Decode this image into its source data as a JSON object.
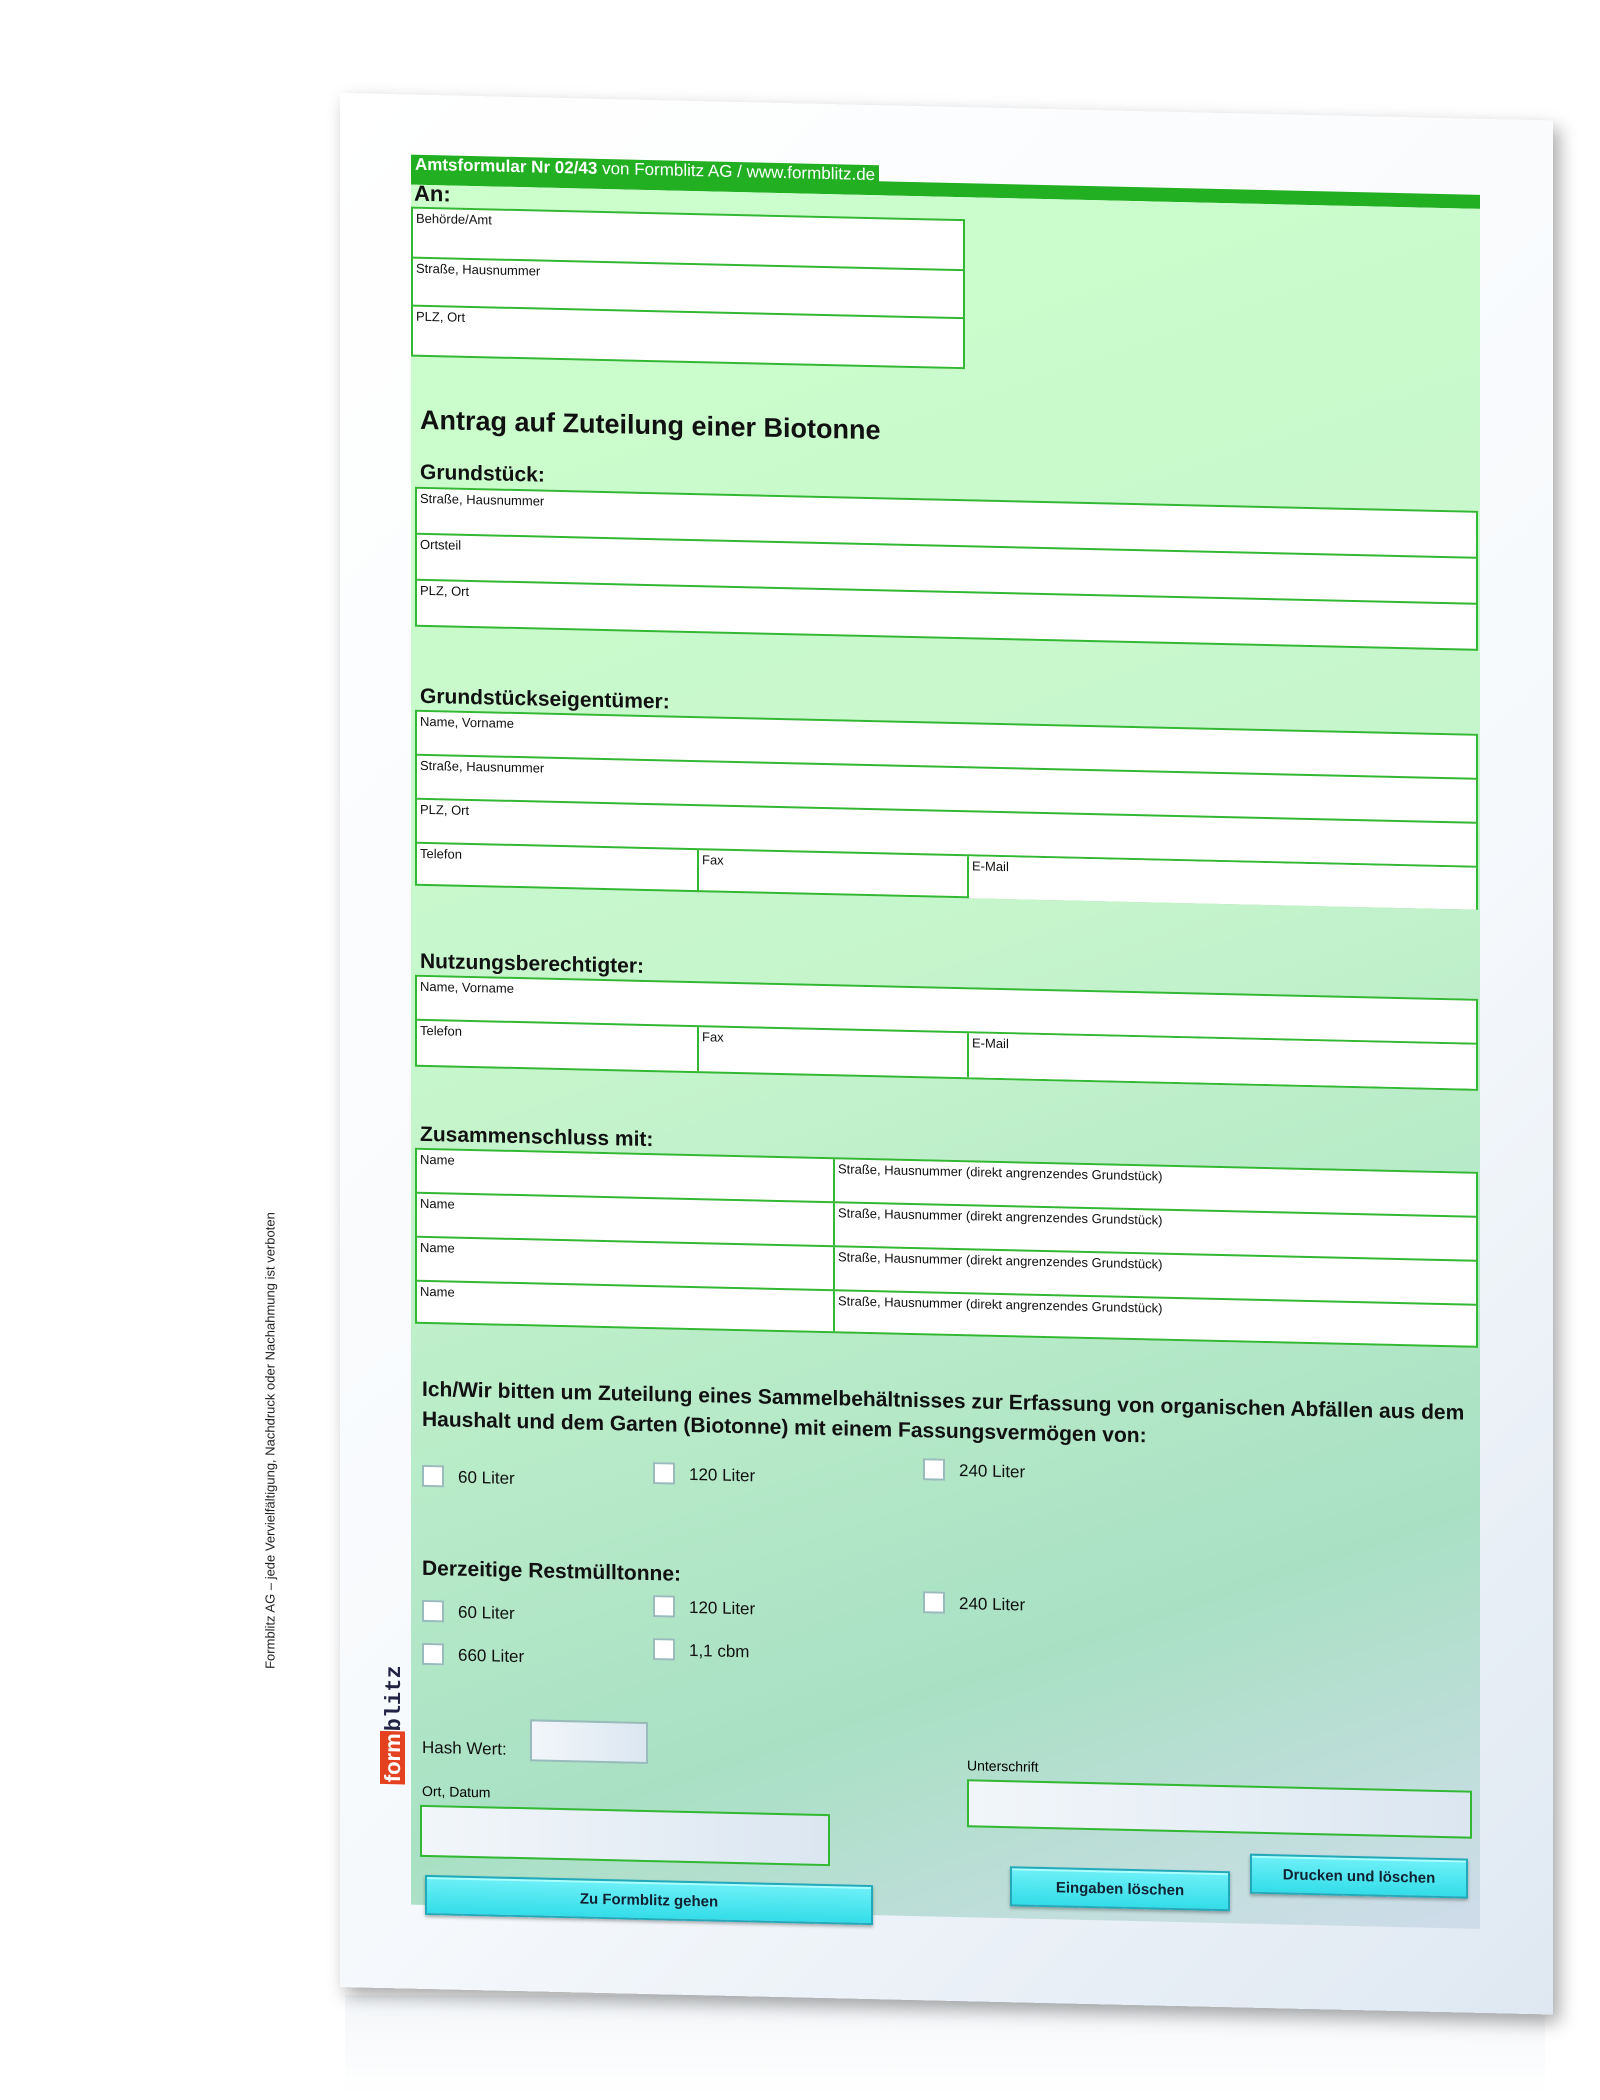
{
  "header": {
    "form_number": "Amtsformular Nr 02/43",
    "publisher": "von Formblitz AG / www.formblitz.de"
  },
  "an": {
    "heading": "An:",
    "fields": [
      "Behörde/Amt",
      "Straße,  Hausnummer",
      "PLZ, Ort"
    ]
  },
  "title": "Antrag auf Zuteilung einer Biotonne",
  "grundstueck": {
    "heading": "Grundstück:",
    "fields": [
      "Straße,  Hausnummer",
      "Ortsteil",
      "PLZ, Ort"
    ]
  },
  "eigentuemer": {
    "heading": "Grundstückseigentümer:",
    "fields": [
      "Name, Vorname",
      "Straße,  Hausnummer",
      "PLZ, Ort"
    ],
    "contact": [
      "Telefon",
      "Fax",
      "E-Mail"
    ]
  },
  "nutzung": {
    "heading": "Nutzungsberechtigter:",
    "fields": [
      "Name, Vorname"
    ],
    "contact": [
      "Telefon",
      "Fax",
      "E-Mail"
    ]
  },
  "zusammenschluss": {
    "heading": "Zusammenschluss mit:",
    "name_label": "Name",
    "street_label": "Straße,  Hausnummer (direkt angrenzendes Grundstück)"
  },
  "request_text": "Ich/Wir bitten um Zuteilung eines Sammelbehältnisses zur Erfassung von organischen Abfällen aus dem Haushalt und dem Garten (Biotonne) mit einem Fassungsvermögen von:",
  "biotonne_options": [
    "60 Liter",
    "120 Liter",
    "240 Liter"
  ],
  "restmuell": {
    "heading": "Derzeitige Restmülltonne:",
    "options": [
      "60 Liter",
      "120 Liter",
      "240 Liter",
      "660 Liter",
      "1,1 cbm"
    ]
  },
  "hash_label": "Hash Wert:",
  "signature": {
    "ort_datum": "Ort, Datum",
    "unterschrift": "Unterschrift"
  },
  "buttons": {
    "formblitz": "Zu Formblitz gehen",
    "clear": "Eingaben löschen",
    "print": "Drucken und löschen"
  },
  "side_text": "Formblitz AG – jede Vervielfältigung, Nachdruck oder Nachahmung ist verboten",
  "logo": {
    "part1": "form",
    "part2": "blitz"
  },
  "colors": {
    "header_green": "#22b022",
    "form_bg": "#ccffcc",
    "border": "#33b833",
    "button": "#44e4ee",
    "logo_red": "#e3411f"
  }
}
